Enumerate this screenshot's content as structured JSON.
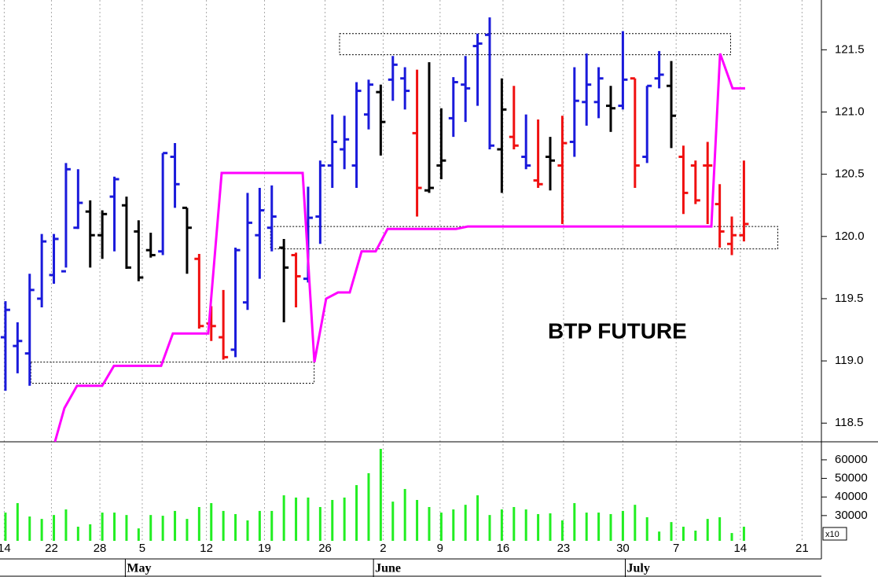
{
  "chart_data": {
    "type": "ohlc",
    "annotation": "BTP FUTURE",
    "x": [
      0,
      1,
      2,
      3,
      4,
      5,
      6,
      7,
      8,
      9,
      10,
      11,
      12,
      13,
      14,
      15,
      16,
      17,
      18,
      19,
      20,
      21,
      22,
      23,
      24,
      25,
      26,
      27,
      28,
      29,
      30,
      31,
      32,
      33,
      34,
      35,
      36,
      37,
      38,
      39,
      40,
      41,
      42,
      43,
      44,
      45,
      46,
      47,
      48,
      49,
      50,
      51,
      52,
      53,
      54,
      55,
      56,
      57,
      58,
      59,
      60,
      61
    ],
    "open": [
      119.19,
      119.12,
      119.06,
      119.5,
      119.69,
      119.72,
      120.07,
      120.2,
      120.01,
      120.32,
      120.25,
      120.04,
      119.89,
      119.88,
      120.64,
      120.23,
      119.82,
      119.3,
      119.19,
      119.09,
      119.47,
      120.01,
      120.07,
      119.91,
      119.85,
      119.66,
      120.16,
      120.57,
      120.7,
      120.57,
      120.98,
      121.16,
      121.26,
      121.27,
      120.83,
      120.37,
      120.57,
      120.95,
      121.22,
      121.53,
      121.62,
      120.7,
      120.8,
      120.64,
      120.45,
      120.64,
      120.57,
      120.76,
      121.08,
      121.08,
      121.05,
      121.05,
      121.27,
      120.64,
      121.27,
      121.21,
      120.64,
      120.57,
      120.57,
      120.26,
      119.94,
      120.01
    ],
    "high": [
      119.48,
      119.31,
      119.7,
      120.02,
      120.02,
      120.59,
      120.54,
      120.29,
      120.21,
      120.48,
      120.32,
      120.13,
      120.03,
      120.67,
      120.75,
      120.23,
      119.86,
      119.44,
      119.57,
      119.91,
      120.35,
      120.39,
      120.41,
      119.98,
      119.87,
      120.4,
      120.61,
      120.98,
      120.97,
      121.24,
      121.26,
      121.22,
      121.45,
      121.36,
      121.34,
      121.4,
      121.03,
      121.28,
      121.45,
      121.63,
      121.76,
      121.27,
      121.21,
      120.98,
      120.94,
      120.8,
      120.97,
      121.36,
      121.47,
      121.36,
      121.21,
      121.65,
      121.27,
      121.21,
      121.49,
      121.41,
      120.73,
      120.61,
      120.76,
      120.42,
      120.16,
      120.61
    ],
    "low": [
      118.76,
      118.9,
      118.8,
      119.43,
      119.62,
      119.75,
      120.06,
      119.75,
      119.82,
      119.88,
      119.74,
      119.64,
      119.83,
      119.85,
      120.23,
      119.7,
      119.26,
      119.16,
      119.01,
      119.03,
      119.41,
      119.66,
      119.88,
      119.31,
      119.43,
      119.63,
      119.94,
      120.39,
      120.54,
      120.39,
      120.86,
      120.65,
      121.09,
      121.02,
      120.16,
      120.35,
      120.46,
      120.8,
      120.92,
      121.05,
      120.7,
      120.35,
      120.7,
      120.54,
      120.39,
      120.37,
      120.1,
      120.64,
      120.89,
      120.95,
      120.84,
      121.02,
      120.39,
      120.59,
      121.19,
      120.71,
      120.18,
      120.26,
      120.1,
      119.91,
      119.85,
      119.96
    ],
    "close": [
      119.41,
      119.16,
      119.57,
      119.96,
      119.98,
      120.54,
      120.27,
      120.01,
      120.18,
      120.46,
      119.75,
      119.67,
      119.85,
      120.67,
      120.42,
      120.07,
      119.28,
      119.28,
      119.03,
      119.89,
      120.11,
      120.21,
      120.16,
      119.75,
      119.68,
      120.15,
      120.57,
      120.76,
      120.78,
      121.17,
      121.22,
      120.92,
      121.38,
      121.17,
      120.39,
      120.39,
      120.61,
      121.24,
      121.19,
      121.55,
      120.73,
      121.02,
      120.73,
      120.57,
      120.42,
      120.61,
      120.75,
      121.09,
      121.22,
      121.27,
      121.03,
      121.26,
      120.57,
      121.21,
      121.3,
      120.97,
      120.35,
      120.29,
      120.57,
      120.04,
      120.01,
      120.1
    ],
    "colors": [
      "#1a1adb",
      "#1a1adb",
      "#1a1adb",
      "#1a1adb",
      "#1a1adb",
      "#1a1adb",
      "#1a1adb",
      "#000000",
      "#000000",
      "#1a1adb",
      "#000000",
      "#000000",
      "#000000",
      "#1a1adb",
      "#1a1adb",
      "#000000",
      "#f01010",
      "#f01010",
      "#f01010",
      "#1a1adb",
      "#1a1adb",
      "#1a1adb",
      "#1a1adb",
      "#000000",
      "#f01010",
      "#1a1adb",
      "#1a1adb",
      "#1a1adb",
      "#1a1adb",
      "#1a1adb",
      "#1a1adb",
      "#000000",
      "#1a1adb",
      "#1a1adb",
      "#f01010",
      "#000000",
      "#000000",
      "#1a1adb",
      "#1a1adb",
      "#1a1adb",
      "#1a1adb",
      "#000000",
      "#f01010",
      "#1a1adb",
      "#f01010",
      "#000000",
      "#f01010",
      "#1a1adb",
      "#1a1adb",
      "#1a1adb",
      "#000000",
      "#1a1adb",
      "#f01010",
      "#1a1adb",
      "#1a1adb",
      "#000000",
      "#f01010",
      "#f01010",
      "#f01010",
      "#f01010",
      "#f01010",
      "#f01010"
    ],
    "xlim": [
      -0.45,
      67.4
    ],
    "xticks": [
      {
        "value": -0.1,
        "label": "14"
      },
      {
        "value": 3.8,
        "label": "22"
      },
      {
        "value": 7.8,
        "label": "28"
      },
      {
        "value": 11.3,
        "label": "5"
      },
      {
        "value": 16.6,
        "label": "12"
      },
      {
        "value": 21.4,
        "label": "19"
      },
      {
        "value": 26.4,
        "label": "26"
      },
      {
        "value": 31.2,
        "label": "2"
      },
      {
        "value": 35.9,
        "label": "9"
      },
      {
        "value": 41.1,
        "label": "16"
      },
      {
        "value": 46.1,
        "label": "23"
      },
      {
        "value": 51.0,
        "label": "30"
      },
      {
        "value": 55.4,
        "label": "7"
      },
      {
        "value": 60.7,
        "label": "14"
      },
      {
        "value": 65.8,
        "label": "21"
      }
    ],
    "months": [
      {
        "value": 9.9,
        "label": "May"
      },
      {
        "value": 30.4,
        "label": "June"
      },
      {
        "value": 51.2,
        "label": "July"
      }
    ],
    "ylim": [
      118.35,
      121.9
    ],
    "yticks": [
      118.5,
      {
        "value": 119,
        "label": "119.0"
      },
      119.5,
      {
        "value": 120,
        "label": "120.0"
      },
      120.5,
      {
        "value": 121,
        "label": "121.0"
      },
      121.5
    ],
    "line": {
      "color": "#ff00ff",
      "x": [
        4.09,
        4.87,
        5.91,
        7.99,
        8.96,
        12.86,
        13.83,
        16.75,
        17.86,
        24.55,
        25.52,
        26.49,
        27.47,
        28.44,
        29.42,
        30.58,
        31.56,
        37.21,
        38.18,
        58.31,
        59.03,
        60.06,
        61.1
      ],
      "values": [
        118.35,
        118.62,
        118.8,
        118.8,
        118.96,
        118.96,
        119.22,
        119.22,
        120.51,
        120.51,
        118.99,
        119.5,
        119.55,
        119.55,
        119.88,
        119.88,
        120.06,
        120.06,
        120.08,
        120.08,
        121.47,
        121.19,
        121.19
      ]
    },
    "zones": [
      {
        "x": [
          27.6,
          59.9
        ],
        "y": [
          121.46,
          121.63
        ]
      },
      {
        "x": [
          21.9,
          63.8
        ],
        "y": [
          119.9,
          120.08
        ]
      },
      {
        "x": [
          2.1,
          25.5
        ],
        "y": [
          118.82,
          118.99
        ]
      }
    ],
    "volume": {
      "color": "#22ee22",
      "axis": "y2",
      "values": [
        31600,
        36700,
        29500,
        28200,
        30300,
        33300,
        24000,
        25300,
        31600,
        31600,
        30300,
        23100,
        30300,
        29900,
        32500,
        28200,
        34600,
        36700,
        32500,
        30800,
        27400,
        32500,
        32500,
        40900,
        39700,
        39700,
        34600,
        38400,
        39700,
        46400,
        52800,
        65900,
        37500,
        44300,
        38400,
        34600,
        31600,
        33300,
        35800,
        40900,
        30300,
        33300,
        34600,
        33300,
        30800,
        31200,
        27400,
        36700,
        31600,
        31600,
        30800,
        32500,
        35800,
        29100,
        21400,
        26500,
        24000,
        21900,
        28200,
        29100,
        20600,
        24000
      ]
    },
    "y2lim": [
      16400,
      69700
    ],
    "y2ticks": [
      30000,
      40000,
      50000,
      60000
    ],
    "y2_multiplier": "x10",
    "grid": true
  }
}
